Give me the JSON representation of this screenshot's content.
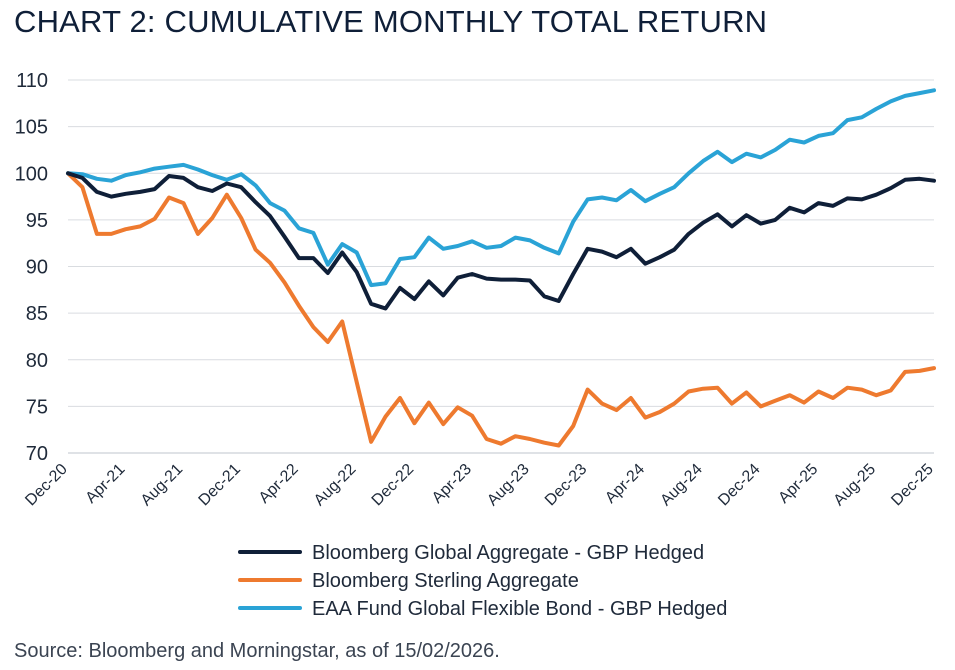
{
  "title": "CHART 2: CUMULATIVE MONTHLY TOTAL RETURN",
  "source": "Source: Bloomberg and Morningstar, as of 15/02/2026.",
  "chart_data": {
    "type": "line",
    "title": "CHART 2: CUMULATIVE MONTHLY TOTAL RETURN",
    "xlabel": "",
    "ylabel": "",
    "ylim": [
      70,
      110
    ],
    "yticks": [
      "70",
      "75",
      "80",
      "85",
      "90",
      "95",
      "100",
      "105",
      "110"
    ],
    "x_tick_labels": [
      "Dec-20",
      "Apr-21",
      "Aug-21",
      "Dec-21",
      "Apr-22",
      "Aug-22",
      "Dec-22",
      "Apr-23",
      "Aug-23",
      "Dec-23",
      "Apr-24",
      "Aug-24",
      "Dec-24",
      "Apr-25",
      "Aug-25",
      "Dec-25"
    ],
    "grid": true,
    "legend_position": "bottom",
    "series": [
      {
        "name": "Bloomberg Global Aggregate - GBP Hedged",
        "color": "#0f1f38",
        "values": [
          100,
          99.5,
          98,
          97.5,
          97.8,
          98,
          98.3,
          99.7,
          99.5,
          98.5,
          98.1,
          98.9,
          98.5,
          96.9,
          95.4,
          93.2,
          90.9,
          90.9,
          89.3,
          91.5,
          89.4,
          86,
          85.5,
          87.7,
          86.5,
          88.4,
          86.9,
          88.8,
          89.2,
          88.7,
          88.6,
          88.6,
          88.5,
          86.8,
          86.3,
          89.2,
          91.9,
          91.6,
          91,
          91.9,
          90.3,
          91,
          91.8,
          93.5,
          94.7,
          95.6,
          94.3,
          95.5,
          94.6,
          95,
          96.3,
          95.8,
          96.8,
          96.5,
          97.3,
          97.2,
          97.7,
          98.4,
          99.3,
          99.4,
          99.2
        ]
      },
      {
        "name": "Bloomberg Sterling Aggregate",
        "color": "#ee7a2f",
        "values": [
          100,
          98.5,
          93.5,
          93.5,
          94,
          94.3,
          95.1,
          97.4,
          96.8,
          93.5,
          95.2,
          97.7,
          95.2,
          91.8,
          90.4,
          88.3,
          85.8,
          83.5,
          81.9,
          84.1,
          77.6,
          71.2,
          73.9,
          75.9,
          73.2,
          75.4,
          73.1,
          74.9,
          74,
          71.5,
          71,
          71.8,
          71.5,
          71.1,
          70.8,
          72.9,
          76.8,
          75.3,
          74.6,
          75.9,
          73.8,
          74.4,
          75.3,
          76.6,
          76.9,
          77,
          75.3,
          76.5,
          75,
          75.6,
          76.2,
          75.4,
          76.6,
          75.9,
          77,
          76.8,
          76.2,
          76.7,
          78.7,
          78.8,
          79.1
        ]
      },
      {
        "name": "EAA Fund Global Flexible Bond - GBP Hedged",
        "color": "#2aa3d6",
        "values": [
          100,
          99.9,
          99.4,
          99.2,
          99.8,
          100.1,
          100.5,
          100.7,
          100.9,
          100.4,
          99.8,
          99.3,
          99.9,
          98.7,
          96.8,
          96,
          94.1,
          93.6,
          90.2,
          92.4,
          91.5,
          88,
          88.2,
          90.8,
          91,
          93.1,
          91.9,
          92.2,
          92.7,
          92,
          92.2,
          93.1,
          92.8,
          92,
          91.4,
          94.8,
          97.2,
          97.4,
          97.1,
          98.2,
          97,
          97.8,
          98.5,
          100,
          101.3,
          102.3,
          101.2,
          102.1,
          101.7,
          102.5,
          103.6,
          103.3,
          104,
          104.3,
          105.7,
          106,
          106.9,
          107.7,
          108.3,
          108.6,
          108.9
        ]
      }
    ]
  }
}
